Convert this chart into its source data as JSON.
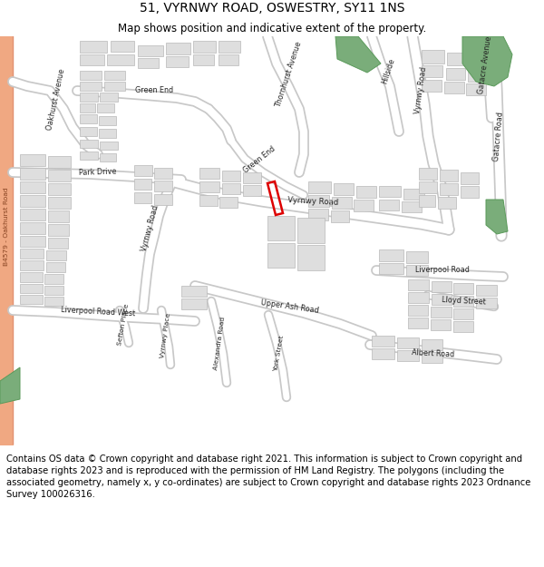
{
  "title": "51, VYRNWY ROAD, OSWESTRY, SY11 1NS",
  "subtitle": "Map shows position and indicative extent of the property.",
  "footer": "Contains OS data © Crown copyright and database right 2021. This information is subject to Crown copyright and database rights 2023 and is reproduced with the permission of HM Land Registry. The polygons (including the associated geometry, namely x, y co-ordinates) are subject to Crown copyright and database rights 2023 Ordnance Survey 100026316.",
  "bg_color": "#ffffff",
  "map_bg": "#f2f2ee",
  "road_color": "#ffffff",
  "road_outline": "#c8c8c8",
  "building_fill": "#dedede",
  "building_edge": "#b8b8b8",
  "green_fill": "#7aad7a",
  "green_edge": "#5a9a5a",
  "salmon_fill": "#f0a882",
  "plot_color": "#dd0000",
  "title_fontsize": 10,
  "subtitle_fontsize": 8.5,
  "footer_fontsize": 7.2,
  "label_fontsize": 6.0
}
